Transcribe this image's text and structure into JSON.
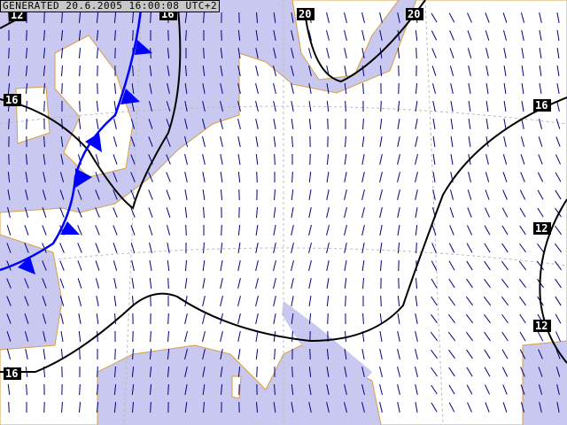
{
  "header": {
    "generated": "GENERATED 20.6.2005 16:00:08 UTC+2"
  },
  "colors": {
    "sea": "#c8c8f0",
    "land": "#ffffff",
    "border": "#d8a040",
    "isobar": "#000000",
    "cold_front": "#0000ff",
    "wind": "#000080"
  },
  "isolines": [
    {
      "value": "12",
      "labels": [
        "12"
      ]
    },
    {
      "value": "16",
      "labels": [
        "16",
        "16"
      ]
    },
    {
      "value": "20",
      "labels": [
        "20",
        "20"
      ]
    },
    {
      "value": "16",
      "labels": [
        "16",
        "16"
      ]
    },
    {
      "value": "12",
      "labels": [
        "12",
        "12"
      ]
    }
  ],
  "fronts": [
    {
      "type": "cold-front"
    }
  ],
  "wind_field": {
    "prevailing_direction": "north-to-south"
  }
}
